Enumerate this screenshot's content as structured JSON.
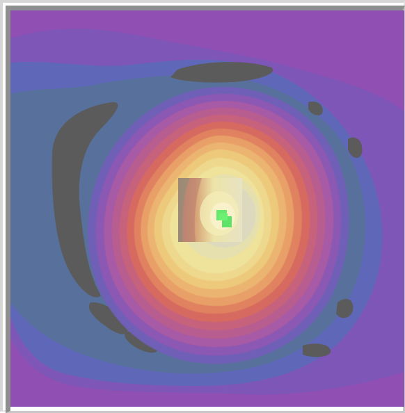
{
  "viewer": {
    "colors": {
      "background": "#9a5aa8",
      "outer_purple": "#8f4fb3",
      "blue_band": "#5f68b8",
      "teal_band": "#58709c",
      "dark_ring": "#5b5b5b",
      "ring_1": "#8b58b3",
      "ring_2": "#b85d90",
      "ring_3": "#d66a60",
      "ring_4": "#e9a067",
      "ring_5": "#edc97c",
      "ring_6": "#efe29b",
      "core": "#dcd9bf",
      "overlay_box": "#e7e4be",
      "cursor": "#66e96c"
    }
  }
}
